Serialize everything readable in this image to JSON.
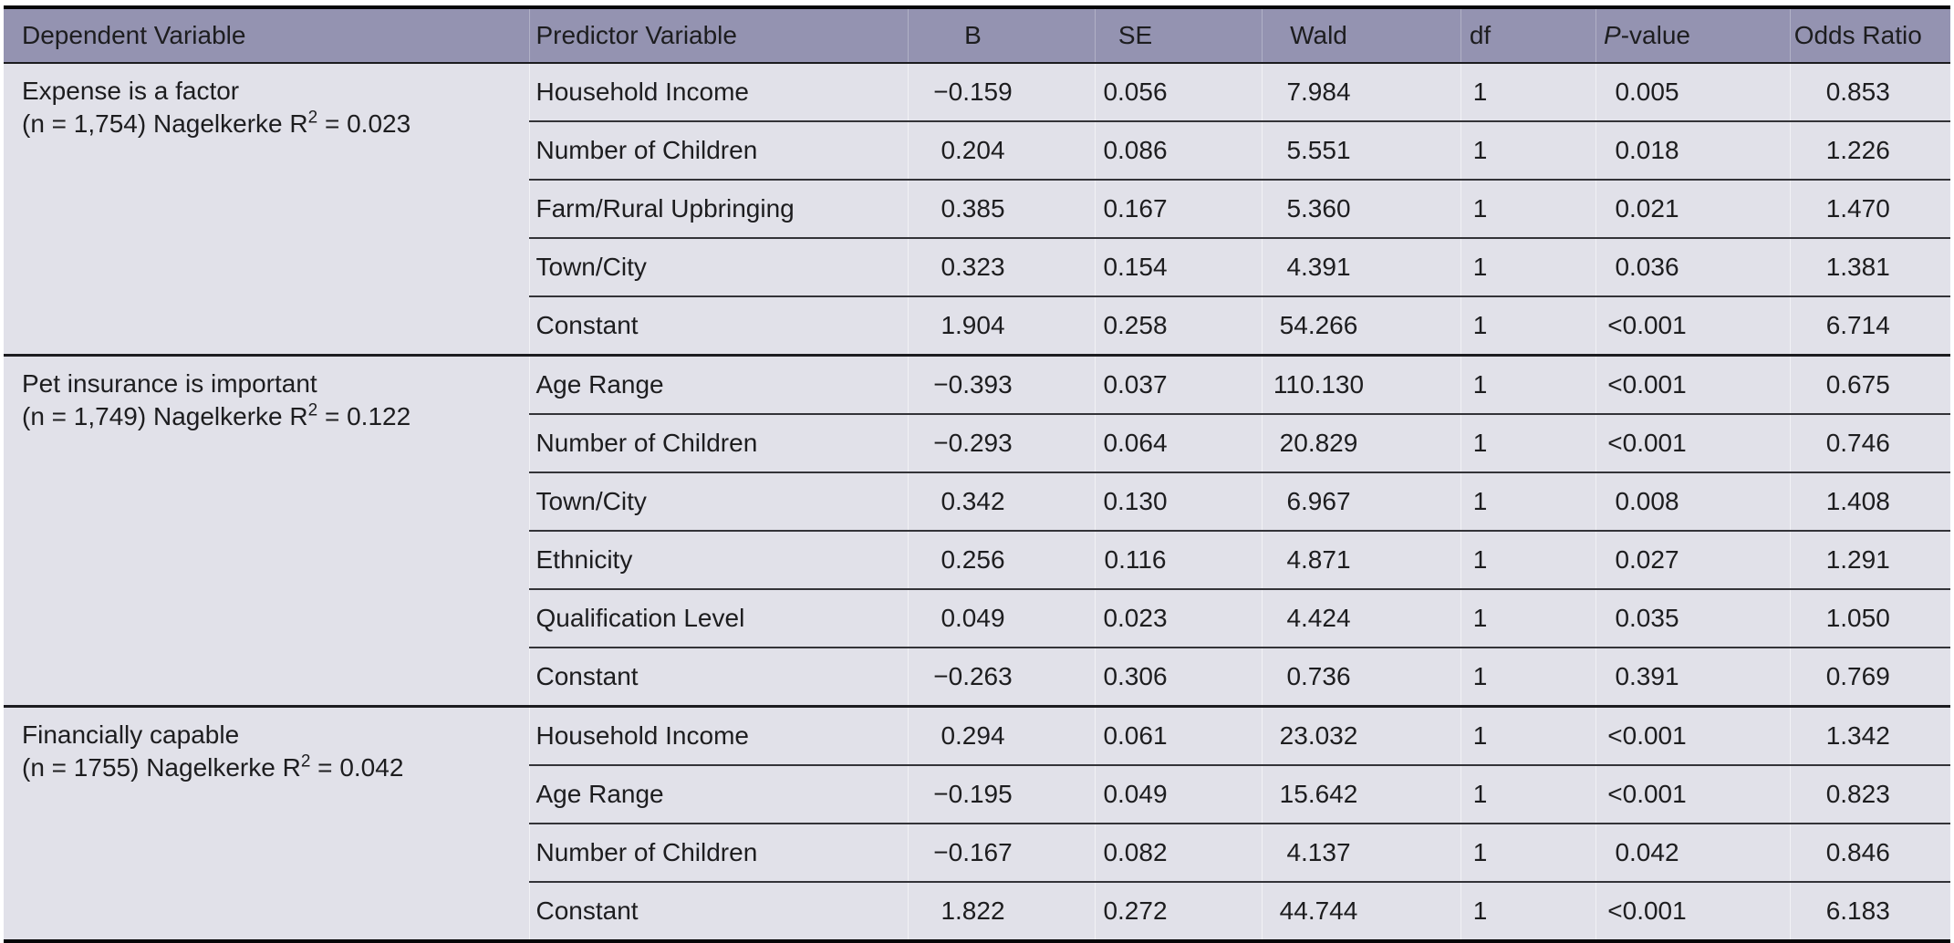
{
  "colors": {
    "header_background": "#9493b1",
    "body_background": "#e1e1e9",
    "thick_rule": "#060608",
    "row_rule": "#333338",
    "text": "#1d1d1f"
  },
  "table": {
    "columns": {
      "dependent": "Dependent Variable",
      "predictor": "Predictor Variable",
      "b": "B",
      "se": "SE",
      "wald": "Wald",
      "df": "df",
      "p_italic": "P",
      "p_rest": "-value",
      "odds_ratio": "Odds Ratio"
    },
    "groups": [
      {
        "dependent": "Expense is a factor",
        "note_before": "(n = 1,754) Nagelkerke R",
        "note_sup": "2",
        "note_after": " = 0.023",
        "rows": [
          {
            "predictor": "Household Income",
            "b": "−0.159",
            "se": "0.056",
            "wald": "7.984",
            "df": "1",
            "p": "0.005",
            "or": "0.853"
          },
          {
            "predictor": "Number of Children",
            "b": "0.204",
            "se": "0.086",
            "wald": "5.551",
            "df": "1",
            "p": "0.018",
            "or": "1.226"
          },
          {
            "predictor": "Farm/Rural Upbringing",
            "b": "0.385",
            "se": "0.167",
            "wald": "5.360",
            "df": "1",
            "p": "0.021",
            "or": "1.470"
          },
          {
            "predictor": "Town/City",
            "b": "0.323",
            "se": "0.154",
            "wald": "4.391",
            "df": "1",
            "p": "0.036",
            "or": "1.381"
          },
          {
            "predictor": "Constant",
            "b": "1.904",
            "se": "0.258",
            "wald": "54.266",
            "df": "1",
            "p": "<0.001",
            "or": "6.714"
          }
        ]
      },
      {
        "dependent": "Pet insurance is important",
        "note_before": "(n = 1,749) Nagelkerke R",
        "note_sup": "2",
        "note_after": " = 0.122",
        "rows": [
          {
            "predictor": "Age Range",
            "b": "−0.393",
            "se": "0.037",
            "wald": "110.130",
            "df": "1",
            "p": "<0.001",
            "or": "0.675"
          },
          {
            "predictor": "Number of Children",
            "b": "−0.293",
            "se": "0.064",
            "wald": "20.829",
            "df": "1",
            "p": "<0.001",
            "or": "0.746"
          },
          {
            "predictor": "Town/City",
            "b": "0.342",
            "se": "0.130",
            "wald": "6.967",
            "df": "1",
            "p": "0.008",
            "or": "1.408"
          },
          {
            "predictor": "Ethnicity",
            "b": "0.256",
            "se": "0.116",
            "wald": "4.871",
            "df": "1",
            "p": "0.027",
            "or": "1.291"
          },
          {
            "predictor": "Qualification Level",
            "b": "0.049",
            "se": "0.023",
            "wald": "4.424",
            "df": "1",
            "p": "0.035",
            "or": "1.050"
          },
          {
            "predictor": "Constant",
            "b": "−0.263",
            "se": "0.306",
            "wald": "0.736",
            "df": "1",
            "p": "0.391",
            "or": "0.769"
          }
        ]
      },
      {
        "dependent": "Financially capable",
        "note_before": "(n = 1755) Nagelkerke R",
        "note_sup": "2",
        "note_after": " = 0.042",
        "rows": [
          {
            "predictor": "Household Income",
            "b": "0.294",
            "se": "0.061",
            "wald": "23.032",
            "df": "1",
            "p": "<0.001",
            "or": "1.342"
          },
          {
            "predictor": "Age Range",
            "b": "−0.195",
            "se": "0.049",
            "wald": "15.642",
            "df": "1",
            "p": "<0.001",
            "or": "0.823"
          },
          {
            "predictor": "Number of Children",
            "b": "−0.167",
            "se": "0.082",
            "wald": "4.137",
            "df": "1",
            "p": "0.042",
            "or": "0.846"
          },
          {
            "predictor": "Constant",
            "b": "1.822",
            "se": "0.272",
            "wald": "44.744",
            "df": "1",
            "p": "<0.001",
            "or": "6.183"
          }
        ]
      }
    ]
  }
}
